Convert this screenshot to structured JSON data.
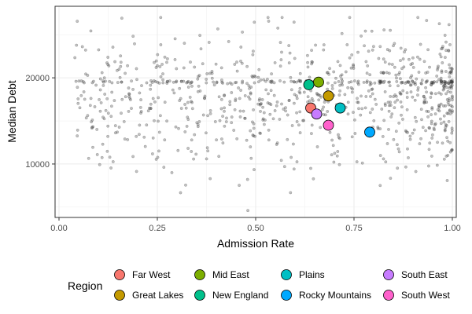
{
  "chart_data": {
    "type": "scatter",
    "xlabel": "Admission Rate",
    "ylabel": "Median Debt",
    "xlim": [
      -0.01,
      1.01
    ],
    "ylim": [
      3800,
      28300
    ],
    "x_ticks": [
      0.0,
      0.25,
      0.5,
      0.75,
      1.0
    ],
    "x_tick_labels": [
      "0.00",
      "0.25",
      "0.50",
      "0.75",
      "1.00"
    ],
    "y_ticks": [
      10000,
      20000
    ],
    "y_tick_labels": [
      "10000",
      "20000"
    ],
    "grid": true,
    "legend": {
      "title": "Region",
      "position": "bottom"
    },
    "background_points": {
      "color": "#4d4d4d",
      "n": 950,
      "x_range": [
        0.04,
        1.0
      ],
      "y_range": [
        4600,
        27000
      ],
      "note_visible": ""
    },
    "series": [
      {
        "name": "Far West",
        "color": "#F8766D",
        "x": 0.64,
        "y": 16500
      },
      {
        "name": "Great Lakes",
        "color": "#C49A00",
        "x": 0.685,
        "y": 17900
      },
      {
        "name": "Mid East",
        "color": "#7CAE00",
        "x": 0.66,
        "y": 19500
      },
      {
        "name": "New England",
        "color": "#00C08B",
        "x": 0.635,
        "y": 19200
      },
      {
        "name": "Plains",
        "color": "#00BFC4",
        "x": 0.715,
        "y": 16500
      },
      {
        "name": "Rocky Mountains",
        "color": "#00A9FF",
        "x": 0.79,
        "y": 13700
      },
      {
        "name": "South East",
        "color": "#C77CFF",
        "x": 0.655,
        "y": 15800
      },
      {
        "name": "South West",
        "color": "#FF61CC",
        "x": 0.685,
        "y": 14500
      }
    ]
  }
}
